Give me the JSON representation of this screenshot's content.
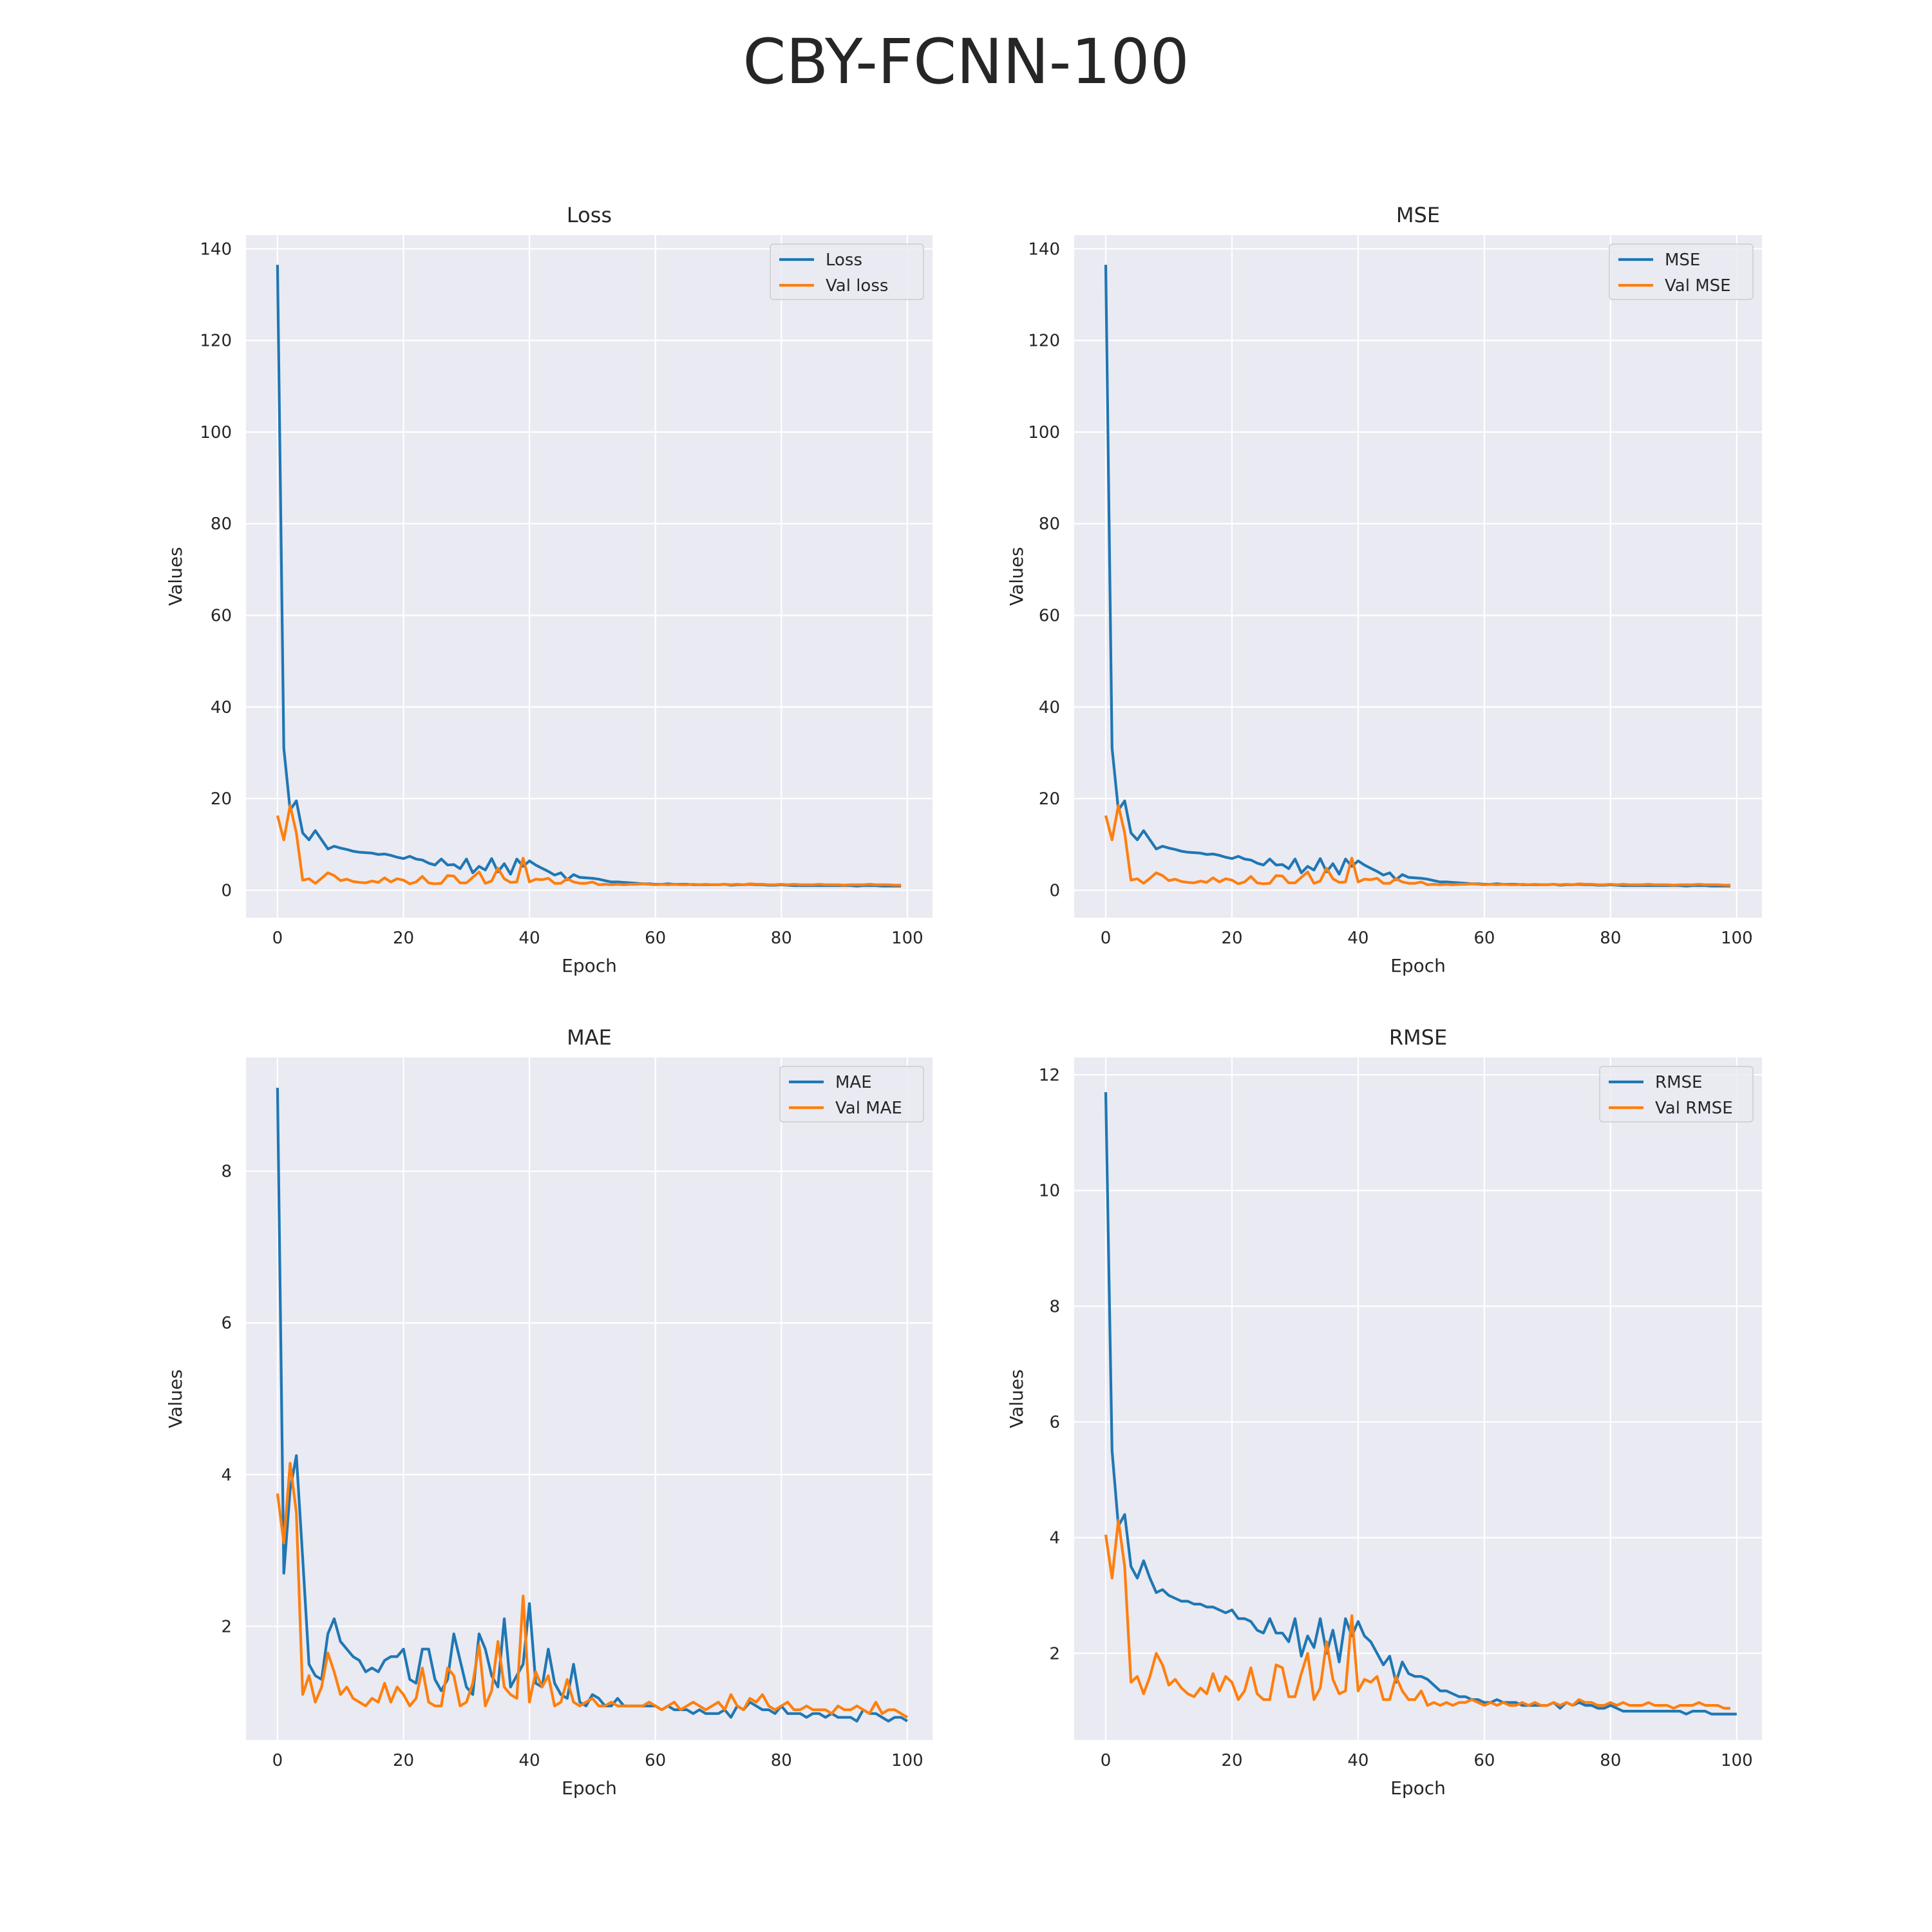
{
  "figure": {
    "title": "CBY-FCNN-100"
  },
  "colors": {
    "train": "#1f77b4",
    "val": "#ff7f0e",
    "plot_bg": "#eaeaf2",
    "grid": "#ffffff"
  },
  "chart_data": [
    {
      "type": "line",
      "title": "Loss",
      "xlabel": "Epoch",
      "ylabel": "Values",
      "xlim": [
        -5,
        104
      ],
      "ylim": [
        -6,
        143
      ],
      "xticks": [
        0,
        20,
        40,
        60,
        80,
        100
      ],
      "yticks": [
        0,
        20,
        40,
        60,
        80,
        100,
        120,
        140
      ],
      "grid": true,
      "legend_position": "top-right",
      "series": [
        {
          "name": "Loss",
          "color_key": "train",
          "values": [
            136.5,
            31,
            17.5,
            19.5,
            12.5,
            11,
            13,
            11,
            9,
            9.6,
            9.2,
            8.9,
            8.5,
            8.3,
            8.2,
            8.1,
            7.8,
            7.9,
            7.6,
            7.2,
            6.9,
            7.4,
            6.8,
            6.6,
            5.9,
            5.5,
            6.8,
            5.5,
            5.6,
            4.7,
            6.8,
            3.8,
            5.2,
            4.4,
            6.9,
            4,
            5.8,
            3.5,
            6.8,
            5.2,
            6.4,
            5.5,
            4.8,
            4.1,
            3.3,
            3.8,
            2.3,
            3.4,
            2.8,
            2.7,
            2.6,
            2.4,
            2.1,
            1.8,
            1.8,
            1.7,
            1.6,
            1.5,
            1.4,
            1.4,
            1.3,
            1.3,
            1.4,
            1.3,
            1.3,
            1.3,
            1.2,
            1.2,
            1.2,
            1.2,
            1.2,
            1.3,
            1.1,
            1.2,
            1.2,
            1.3,
            1.2,
            1.2,
            1.1,
            1.1,
            1.2,
            1.1,
            1,
            1,
            1,
            1,
            1,
            1,
            1,
            1,
            1,
            1,
            0.9,
            1,
            1,
            1,
            0.9,
            0.9,
            0.9,
            0.9
          ]
        },
        {
          "name": "Val loss",
          "color_key": "val",
          "values": [
            16.3,
            11,
            18.5,
            12.5,
            2.2,
            2.5,
            1.5,
            2.6,
            3.8,
            3.2,
            2.1,
            2.4,
            1.9,
            1.7,
            1.6,
            2,
            1.7,
            2.7,
            1.8,
            2.5,
            2.2,
            1.4,
            1.8,
            3,
            1.6,
            1.4,
            1.5,
            3.2,
            3.1,
            1.6,
            1.6,
            2.8,
            4,
            1.5,
            2,
            4.8,
            2.5,
            1.7,
            1.8,
            7,
            1.8,
            2.4,
            2.3,
            2.6,
            1.5,
            1.5,
            2.5,
            1.8,
            1.5,
            1.5,
            1.8,
            1.2,
            1.3,
            1.2,
            1.3,
            1.2,
            1.3,
            1.3,
            1.4,
            1.3,
            1.2,
            1.3,
            1.2,
            1.3,
            1.2,
            1.2,
            1.3,
            1.2,
            1.3,
            1.2,
            1.2,
            1.3,
            1.2,
            1.3,
            1.2,
            1.4,
            1.3,
            1.3,
            1.2,
            1.2,
            1.3,
            1.2,
            1.3,
            1.2,
            1.2,
            1.2,
            1.3,
            1.2,
            1.2,
            1.2,
            1.1,
            1.2,
            1.2,
            1.2,
            1.3,
            1.2,
            1.2,
            1.2,
            1.1,
            1.1
          ]
        }
      ]
    },
    {
      "type": "line",
      "title": "MSE",
      "xlabel": "Epoch",
      "ylabel": "Values",
      "xlim": [
        -5,
        104
      ],
      "ylim": [
        -6,
        143
      ],
      "xticks": [
        0,
        20,
        40,
        60,
        80,
        100
      ],
      "yticks": [
        0,
        20,
        40,
        60,
        80,
        100,
        120,
        140
      ],
      "grid": true,
      "legend_position": "top-right",
      "series": [
        {
          "name": "MSE",
          "color_key": "train",
          "values": [
            136.5,
            31,
            17.5,
            19.5,
            12.5,
            11,
            13,
            11,
            9,
            9.6,
            9.2,
            8.9,
            8.5,
            8.3,
            8.2,
            8.1,
            7.8,
            7.9,
            7.6,
            7.2,
            6.9,
            7.4,
            6.8,
            6.6,
            5.9,
            5.5,
            6.8,
            5.5,
            5.6,
            4.7,
            6.8,
            3.8,
            5.2,
            4.4,
            6.9,
            4,
            5.8,
            3.5,
            6.8,
            5.2,
            6.4,
            5.5,
            4.8,
            4.1,
            3.3,
            3.8,
            2.3,
            3.4,
            2.8,
            2.7,
            2.6,
            2.4,
            2.1,
            1.8,
            1.8,
            1.7,
            1.6,
            1.5,
            1.4,
            1.4,
            1.3,
            1.3,
            1.4,
            1.3,
            1.3,
            1.3,
            1.2,
            1.2,
            1.2,
            1.2,
            1.2,
            1.3,
            1.1,
            1.2,
            1.2,
            1.3,
            1.2,
            1.2,
            1.1,
            1.1,
            1.2,
            1.1,
            1,
            1,
            1,
            1,
            1,
            1,
            1,
            1,
            1,
            1,
            0.9,
            1,
            1,
            1,
            0.9,
            0.9,
            0.9,
            0.9
          ]
        },
        {
          "name": "Val MSE",
          "color_key": "val",
          "values": [
            16.3,
            11,
            18.5,
            12.5,
            2.2,
            2.5,
            1.5,
            2.6,
            3.8,
            3.2,
            2.1,
            2.4,
            1.9,
            1.7,
            1.6,
            2,
            1.7,
            2.7,
            1.8,
            2.5,
            2.2,
            1.4,
            1.8,
            3,
            1.6,
            1.4,
            1.5,
            3.2,
            3.1,
            1.6,
            1.6,
            2.8,
            4,
            1.5,
            2,
            4.8,
            2.5,
            1.7,
            1.8,
            7,
            1.8,
            2.4,
            2.3,
            2.6,
            1.5,
            1.5,
            2.5,
            1.8,
            1.5,
            1.5,
            1.8,
            1.2,
            1.3,
            1.2,
            1.3,
            1.2,
            1.3,
            1.3,
            1.4,
            1.3,
            1.2,
            1.3,
            1.2,
            1.3,
            1.2,
            1.2,
            1.3,
            1.2,
            1.3,
            1.2,
            1.2,
            1.3,
            1.2,
            1.3,
            1.2,
            1.4,
            1.3,
            1.3,
            1.2,
            1.2,
            1.3,
            1.2,
            1.3,
            1.2,
            1.2,
            1.2,
            1.3,
            1.2,
            1.2,
            1.2,
            1.1,
            1.2,
            1.2,
            1.2,
            1.3,
            1.2,
            1.2,
            1.2,
            1.1,
            1.1
          ]
        }
      ]
    },
    {
      "type": "line",
      "title": "MAE",
      "xlabel": "Epoch",
      "ylabel": "Values",
      "xlim": [
        -5,
        104
      ],
      "ylim": [
        0.5,
        9.5
      ],
      "xticks": [
        0,
        20,
        40,
        60,
        80,
        100
      ],
      "yticks": [
        2,
        4,
        6,
        8
      ],
      "grid": true,
      "legend_position": "top-right",
      "series": [
        {
          "name": "MAE",
          "color_key": "train",
          "values": [
            9.1,
            2.7,
            3.8,
            4.25,
            2.9,
            1.5,
            1.35,
            1.3,
            1.9,
            2.1,
            1.8,
            1.7,
            1.6,
            1.55,
            1.4,
            1.45,
            1.4,
            1.55,
            1.6,
            1.6,
            1.7,
            1.3,
            1.25,
            1.7,
            1.7,
            1.3,
            1.15,
            1.3,
            1.9,
            1.55,
            1.2,
            1.1,
            1.9,
            1.7,
            1.35,
            1.2,
            2.1,
            1.2,
            1.35,
            1.5,
            2.3,
            1.25,
            1.2,
            1.7,
            1.25,
            1.1,
            1.05,
            1.5,
            1.0,
            0.95,
            1.1,
            1.05,
            0.95,
            0.95,
            1.05,
            0.95,
            0.95,
            0.95,
            0.95,
            0.95,
            0.95,
            0.9,
            0.95,
            0.9,
            0.9,
            0.9,
            0.85,
            0.9,
            0.85,
            0.85,
            0.85,
            0.9,
            0.8,
            0.95,
            0.9,
            1.0,
            0.95,
            0.9,
            0.9,
            0.85,
            0.95,
            0.85,
            0.85,
            0.85,
            0.8,
            0.85,
            0.85,
            0.8,
            0.85,
            0.8,
            0.8,
            0.8,
            0.75,
            0.9,
            0.85,
            0.85,
            0.8,
            0.75,
            0.8,
            0.8,
            0.75
          ]
        },
        {
          "name": "Val MAE",
          "color_key": "val",
          "values": [
            3.75,
            3.1,
            4.15,
            3.5,
            1.1,
            1.35,
            1.0,
            1.2,
            1.65,
            1.4,
            1.1,
            1.2,
            1.05,
            1.0,
            0.95,
            1.05,
            1.0,
            1.25,
            1.0,
            1.2,
            1.1,
            0.95,
            1.05,
            1.45,
            1.0,
            0.95,
            0.95,
            1.45,
            1.35,
            0.95,
            1.0,
            1.25,
            1.75,
            0.95,
            1.15,
            1.8,
            1.2,
            1.1,
            1.05,
            2.4,
            1.0,
            1.4,
            1.2,
            1.35,
            0.95,
            1.0,
            1.3,
            1.0,
            0.95,
            1.0,
            1.05,
            0.95,
            0.95,
            1.0,
            0.95,
            0.95,
            0.95,
            0.95,
            0.95,
            1.0,
            0.95,
            0.9,
            0.95,
            1.0,
            0.9,
            0.95,
            1.0,
            0.95,
            0.9,
            0.95,
            1.0,
            0.9,
            1.1,
            0.95,
            0.9,
            1.05,
            1.0,
            1.1,
            0.95,
            0.9,
            0.95,
            1.0,
            0.9,
            0.9,
            0.95,
            0.9,
            0.9,
            0.9,
            0.85,
            0.95,
            0.9,
            0.9,
            0.95,
            0.9,
            0.85,
            1.0,
            0.85,
            0.9,
            0.9,
            0.85,
            0.8
          ]
        }
      ]
    },
    {
      "type": "line",
      "title": "RMSE",
      "xlabel": "Epoch",
      "ylabel": "Values",
      "xlim": [
        -5,
        104
      ],
      "ylim": [
        0.5,
        12.3
      ],
      "xticks": [
        0,
        20,
        40,
        60,
        80,
        100
      ],
      "yticks": [
        2,
        4,
        6,
        8,
        10,
        12
      ],
      "grid": true,
      "legend_position": "top-right",
      "series": [
        {
          "name": "RMSE",
          "color_key": "train",
          "values": [
            11.7,
            5.5,
            4.2,
            4.4,
            3.5,
            3.3,
            3.6,
            3.3,
            3.05,
            3.1,
            3.0,
            2.95,
            2.9,
            2.9,
            2.85,
            2.85,
            2.8,
            2.8,
            2.75,
            2.7,
            2.75,
            2.6,
            2.6,
            2.55,
            2.4,
            2.35,
            2.6,
            2.35,
            2.35,
            2.2,
            2.6,
            1.95,
            2.3,
            2.1,
            2.6,
            2.0,
            2.4,
            1.85,
            2.6,
            2.3,
            2.55,
            2.3,
            2.2,
            2.0,
            1.8,
            1.95,
            1.5,
            1.85,
            1.65,
            1.6,
            1.6,
            1.55,
            1.45,
            1.35,
            1.35,
            1.3,
            1.25,
            1.25,
            1.2,
            1.2,
            1.15,
            1.15,
            1.2,
            1.15,
            1.15,
            1.15,
            1.1,
            1.1,
            1.1,
            1.1,
            1.1,
            1.15,
            1.05,
            1.15,
            1.1,
            1.15,
            1.1,
            1.1,
            1.05,
            1.05,
            1.1,
            1.05,
            1.0,
            1.0,
            1.0,
            1.0,
            1.0,
            1.0,
            1.0,
            1.0,
            1.0,
            1.0,
            0.95,
            1.0,
            1.0,
            1.0,
            0.95,
            0.95,
            0.95,
            0.95,
            0.95
          ]
        },
        {
          "name": "Val RMSE",
          "color_key": "val",
          "values": [
            4.05,
            3.3,
            4.3,
            3.5,
            1.5,
            1.6,
            1.3,
            1.6,
            2.0,
            1.8,
            1.45,
            1.55,
            1.4,
            1.3,
            1.25,
            1.4,
            1.3,
            1.65,
            1.35,
            1.6,
            1.5,
            1.2,
            1.35,
            1.75,
            1.3,
            1.2,
            1.2,
            1.8,
            1.75,
            1.25,
            1.25,
            1.65,
            2.0,
            1.2,
            1.4,
            2.2,
            1.55,
            1.3,
            1.35,
            2.65,
            1.35,
            1.55,
            1.5,
            1.6,
            1.2,
            1.2,
            1.6,
            1.35,
            1.2,
            1.2,
            1.35,
            1.1,
            1.15,
            1.1,
            1.15,
            1.1,
            1.15,
            1.15,
            1.2,
            1.15,
            1.1,
            1.15,
            1.1,
            1.15,
            1.1,
            1.1,
            1.15,
            1.1,
            1.15,
            1.1,
            1.1,
            1.15,
            1.1,
            1.15,
            1.1,
            1.2,
            1.15,
            1.15,
            1.1,
            1.1,
            1.15,
            1.1,
            1.15,
            1.1,
            1.1,
            1.1,
            1.15,
            1.1,
            1.1,
            1.1,
            1.05,
            1.1,
            1.1,
            1.1,
            1.15,
            1.1,
            1.1,
            1.1,
            1.05,
            1.05
          ]
        }
      ]
    }
  ]
}
